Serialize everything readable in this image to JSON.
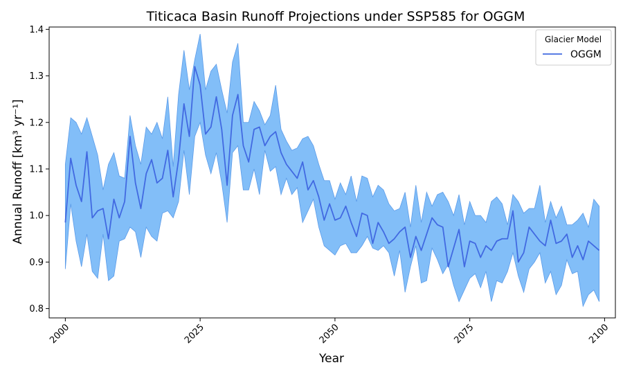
{
  "chart_data": {
    "type": "line",
    "title": "Titicaca Basin Runoff Projections under SSP585 for OGGM",
    "xlabel": "Year",
    "ylabel": "Annual Runoff [km³ yr⁻¹]",
    "xlim": [
      1997,
      2102
    ],
    "ylim": [
      0.78,
      1.405
    ],
    "xticks": [
      2000,
      2025,
      2050,
      2075,
      2100
    ],
    "yticks": [
      0.8,
      0.9,
      1.0,
      1.1,
      1.2,
      1.3,
      1.4
    ],
    "grid": false,
    "legend": {
      "title": "Glacier Model",
      "placement": "top-right",
      "entries": [
        "OGGM"
      ]
    },
    "colors": {
      "line": "#4169e1",
      "band": "#82bef8",
      "band_edge": "#5a9ae8"
    },
    "x": [
      2000,
      2001,
      2002,
      2003,
      2004,
      2005,
      2006,
      2007,
      2008,
      2009,
      2010,
      2011,
      2012,
      2013,
      2014,
      2015,
      2016,
      2017,
      2018,
      2019,
      2020,
      2021,
      2022,
      2023,
      2024,
      2025,
      2026,
      2027,
      2028,
      2029,
      2030,
      2031,
      2032,
      2033,
      2034,
      2035,
      2036,
      2037,
      2038,
      2039,
      2040,
      2041,
      2042,
      2043,
      2044,
      2045,
      2046,
      2047,
      2048,
      2049,
      2050,
      2051,
      2052,
      2053,
      2054,
      2055,
      2056,
      2057,
      2058,
      2059,
      2060,
      2061,
      2062,
      2063,
      2064,
      2065,
      2066,
      2067,
      2068,
      2069,
      2070,
      2071,
      2072,
      2073,
      2074,
      2075,
      2076,
      2077,
      2078,
      2079,
      2080,
      2081,
      2082,
      2083,
      2084,
      2085,
      2086,
      2087,
      2088,
      2089,
      2090,
      2091,
      2092,
      2093,
      2094,
      2095,
      2096,
      2097,
      2098,
      2099
    ],
    "series": [
      {
        "name": "OGGM",
        "values": [
          0.985,
          1.123,
          1.065,
          1.03,
          1.137,
          0.995,
          1.01,
          1.015,
          0.95,
          1.035,
          0.995,
          1.03,
          1.17,
          1.07,
          1.015,
          1.09,
          1.12,
          1.07,
          1.08,
          1.14,
          1.04,
          1.12,
          1.24,
          1.17,
          1.32,
          1.28,
          1.175,
          1.19,
          1.255,
          1.185,
          1.065,
          1.215,
          1.26,
          1.15,
          1.115,
          1.185,
          1.19,
          1.15,
          1.17,
          1.18,
          1.135,
          1.11,
          1.095,
          1.08,
          1.115,
          1.055,
          1.075,
          1.04,
          0.99,
          1.025,
          0.99,
          0.995,
          1.02,
          0.985,
          0.955,
          1.005,
          1.0,
          0.94,
          0.985,
          0.965,
          0.94,
          0.95,
          0.965,
          0.975,
          0.91,
          0.955,
          0.925,
          0.96,
          0.995,
          0.98,
          0.975,
          0.89,
          0.93,
          0.97,
          0.89,
          0.945,
          0.94,
          0.91,
          0.935,
          0.925,
          0.945,
          0.95,
          0.95,
          1.01,
          0.9,
          0.92,
          0.975,
          0.96,
          0.945,
          0.935,
          0.99,
          0.94,
          0.945,
          0.96,
          0.91,
          0.935,
          0.905,
          0.945,
          0.935,
          0.925
        ],
        "lower": [
          0.885,
          1.025,
          0.945,
          0.89,
          0.96,
          0.88,
          0.865,
          0.96,
          0.86,
          0.87,
          0.945,
          0.95,
          0.975,
          0.965,
          0.91,
          0.975,
          0.955,
          0.945,
          1.005,
          1.01,
          0.995,
          1.03,
          1.14,
          1.045,
          1.17,
          1.2,
          1.13,
          1.09,
          1.135,
          1.07,
          0.985,
          1.135,
          1.15,
          1.055,
          1.055,
          1.1,
          1.045,
          1.14,
          1.095,
          1.105,
          1.045,
          1.08,
          1.045,
          1.06,
          0.985,
          1.01,
          1.035,
          0.975,
          0.935,
          0.925,
          0.915,
          0.935,
          0.94,
          0.92,
          0.92,
          0.935,
          0.955,
          0.93,
          0.925,
          0.935,
          0.92,
          0.87,
          0.925,
          0.835,
          0.89,
          0.935,
          0.855,
          0.86,
          0.93,
          0.905,
          0.875,
          0.895,
          0.85,
          0.815,
          0.84,
          0.865,
          0.875,
          0.845,
          0.88,
          0.815,
          0.86,
          0.855,
          0.88,
          0.92,
          0.87,
          0.835,
          0.885,
          0.9,
          0.92,
          0.855,
          0.88,
          0.83,
          0.85,
          0.905,
          0.875,
          0.88,
          0.805,
          0.83,
          0.84,
          0.815
        ],
        "upper": [
          1.11,
          1.21,
          1.2,
          1.175,
          1.21,
          1.17,
          1.13,
          1.055,
          1.11,
          1.135,
          1.085,
          1.08,
          1.215,
          1.15,
          1.11,
          1.19,
          1.175,
          1.2,
          1.165,
          1.255,
          1.105,
          1.26,
          1.355,
          1.27,
          1.335,
          1.39,
          1.27,
          1.31,
          1.325,
          1.27,
          1.22,
          1.33,
          1.37,
          1.2,
          1.2,
          1.245,
          1.225,
          1.195,
          1.215,
          1.28,
          1.185,
          1.16,
          1.14,
          1.145,
          1.165,
          1.17,
          1.15,
          1.11,
          1.075,
          1.075,
          1.035,
          1.07,
          1.045,
          1.085,
          1.03,
          1.085,
          1.08,
          1.04,
          1.065,
          1.055,
          1.025,
          1.01,
          1.015,
          1.05,
          0.975,
          1.065,
          0.985,
          1.05,
          1.02,
          1.045,
          1.05,
          1.03,
          1.0,
          1.045,
          0.98,
          1.03,
          1.0,
          1.0,
          0.985,
          1.03,
          1.04,
          1.025,
          0.98,
          1.045,
          1.03,
          1.005,
          1.015,
          1.015,
          1.065,
          0.985,
          1.03,
          0.995,
          1.02,
          0.98,
          0.98,
          0.99,
          1.005,
          0.975,
          1.035,
          1.02
        ]
      }
    ]
  }
}
